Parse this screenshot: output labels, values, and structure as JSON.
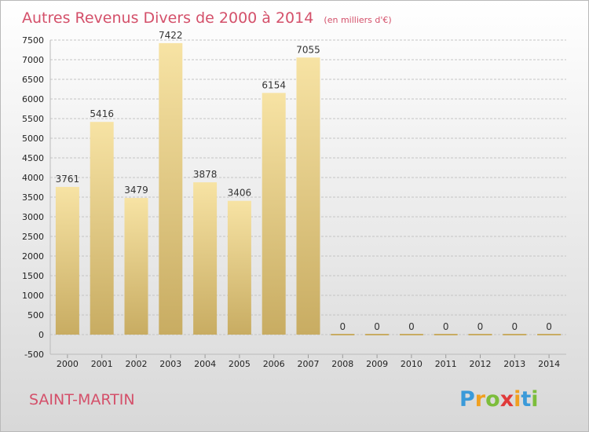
{
  "chart_data": {
    "type": "bar",
    "title": "Autres Revenus Divers de 2000 à 2014",
    "subtitle": "(en milliers d'€)",
    "categories": [
      "2000",
      "2001",
      "2002",
      "2003",
      "2004",
      "2005",
      "2006",
      "2007",
      "2008",
      "2009",
      "2010",
      "2011",
      "2012",
      "2013",
      "2014"
    ],
    "values": [
      3761,
      5416,
      3479,
      7422,
      3878,
      3406,
      6154,
      7055,
      0,
      0,
      0,
      0,
      0,
      0,
      0
    ],
    "ylim": [
      -500,
      7500
    ],
    "yticks": [
      -500,
      0,
      500,
      1000,
      1500,
      2000,
      2500,
      3000,
      3500,
      4000,
      4500,
      5000,
      5500,
      6000,
      6500,
      7000,
      7500
    ],
    "grid": true,
    "bar_color": "#e2c77e"
  },
  "commune": "SAINT-MARTIN",
  "logo": {
    "letters": [
      "P",
      "r",
      "o",
      "x",
      "i",
      "t",
      "i"
    ],
    "colors": [
      "#3a9ad9",
      "#f0a020",
      "#7cbd3b",
      "#e03a3a",
      "#f0a020",
      "#3a9ad9",
      "#7cbd3b"
    ]
  }
}
